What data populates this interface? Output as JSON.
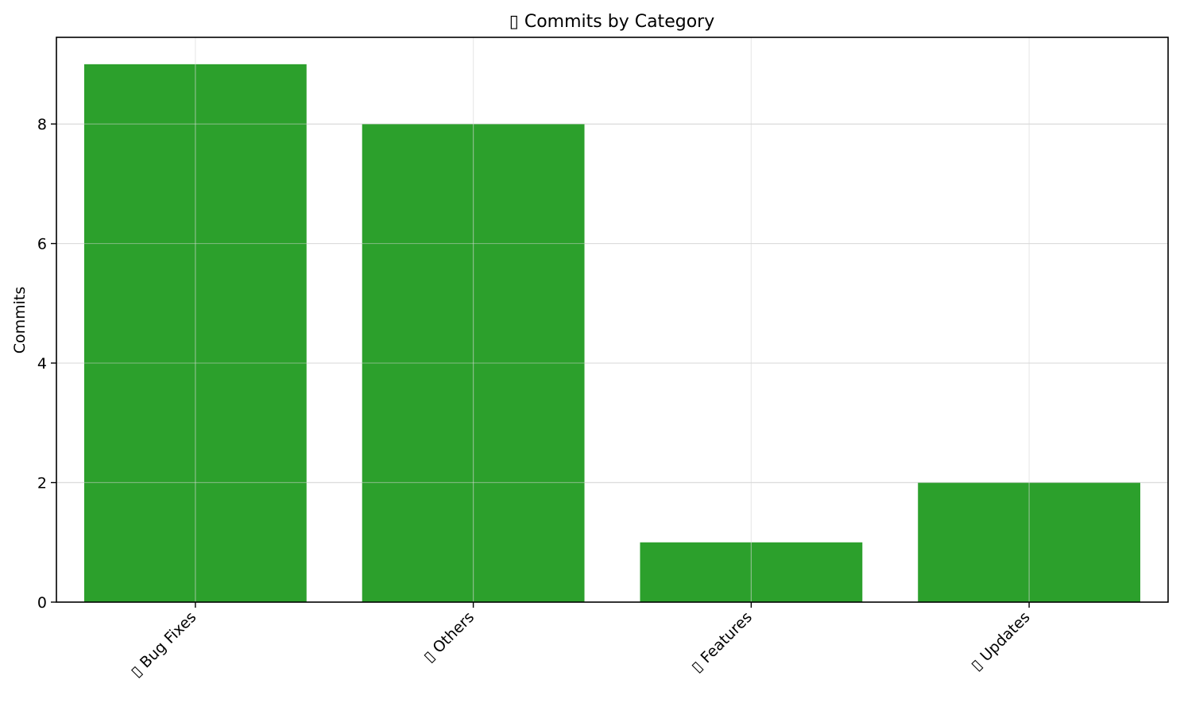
{
  "chart_data": {
    "type": "bar",
    "title": "▯ Commits by Category",
    "xlabel": "",
    "ylabel": "Commits",
    "categories": [
      "▯ Bug Fixes",
      "▯ Others",
      "▯ Features",
      "▯ Updates"
    ],
    "values": [
      9,
      8,
      1,
      2
    ],
    "ylim": [
      0,
      9.45
    ],
    "yticks": [
      0,
      2,
      4,
      6,
      8
    ],
    "grid": true,
    "legend": "none",
    "bar_color": "#2ca02c",
    "grid_color": "#e0e0e0",
    "axis_color": "#000000"
  }
}
